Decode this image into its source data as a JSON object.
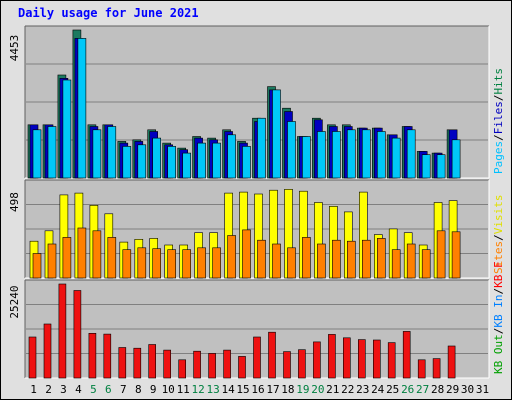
{
  "chart_data": {
    "title": "Daily usage for June 2021",
    "type": "bar",
    "x": [
      "1",
      "2",
      "3",
      "4",
      "5",
      "6",
      "7",
      "8",
      "9",
      "10",
      "11",
      "12",
      "13",
      "14",
      "15",
      "16",
      "17",
      "18",
      "19",
      "20",
      "21",
      "22",
      "23",
      "24",
      "25",
      "26",
      "27",
      "28",
      "29",
      "30",
      "31"
    ],
    "weekend_days": [
      "5",
      "6",
      "12",
      "13",
      "19",
      "20",
      "26",
      "27"
    ],
    "colors": {
      "background": "#e0e0e0",
      "plot_background": "#c0c0c0",
      "gridline": "#808080",
      "weekday_label": "#000000",
      "weekend_label": "#008040",
      "title": "#0000ff"
    },
    "panels": [
      {
        "ytick_top": "4453",
        "ymax": 4453,
        "legend": [
          {
            "text": "Hits",
            "color": "#008040"
          },
          {
            "text": "/",
            "color": "#000000"
          },
          {
            "text": "Files",
            "color": "#0000c0"
          },
          {
            "text": "/",
            "color": "#000000"
          },
          {
            "text": "Pages",
            "color": "#00c0ff"
          }
        ],
        "series": [
          {
            "name": "Hits",
            "color": "#1c7a60",
            "values": [
              1600,
              1600,
              3100,
              4453,
              1600,
              1600,
              1100,
              1150,
              1450,
              1050,
              900,
              1250,
              1200,
              1450,
              1100,
              1800,
              2750,
              2100,
              1250,
              1800,
              1600,
              1600,
              1500,
              1500,
              1300,
              1550,
              800,
              750,
              1450,
              0,
              0
            ]
          },
          {
            "name": "Files",
            "color": "#0000c0",
            "values": [
              1600,
              1600,
              3000,
              4200,
              1550,
              1600,
              1050,
              1100,
              1400,
              1000,
              850,
              1200,
              1150,
              1400,
              1050,
              1700,
              2650,
              2000,
              1250,
              1750,
              1550,
              1550,
              1500,
              1500,
              1300,
              1550,
              800,
              750,
              1450,
              0,
              0
            ]
          },
          {
            "name": "Pages",
            "color": "#00c8f8",
            "values": [
              1450,
              1550,
              2950,
              4200,
              1450,
              1550,
              950,
              1000,
              1200,
              950,
              750,
              1050,
              1050,
              1300,
              950,
              1800,
              2650,
              1700,
              1250,
              1400,
              1400,
              1450,
              1450,
              1400,
              1200,
              1450,
              700,
              700,
              1150,
              0,
              0
            ]
          }
        ]
      },
      {
        "ytick_top": "498",
        "ymax": 498,
        "legend": [
          {
            "text": "Visits",
            "color": "#e0e000"
          },
          {
            "text": "/",
            "color": "#000000"
          },
          {
            "text": "Sites",
            "color": "#ff8000"
          }
        ],
        "series": [
          {
            "name": "Visits",
            "color": "#ffff00",
            "values": [
              195,
              250,
              440,
              450,
              385,
              340,
              190,
              205,
              210,
              175,
              175,
              240,
              240,
              450,
              455,
              445,
              465,
              470,
              460,
              400,
              380,
              350,
              455,
              230,
              260,
              240,
              175,
              400,
              410,
              0,
              0
            ]
          },
          {
            "name": "Sites",
            "color": "#ff8000",
            "values": [
              130,
              180,
              215,
              265,
              250,
              215,
              150,
              160,
              155,
              150,
              150,
              160,
              160,
              225,
              255,
              200,
              180,
              160,
              215,
              180,
              200,
              195,
              200,
              210,
              150,
              180,
              150,
              250,
              245,
              0,
              0
            ]
          }
        ]
      },
      {
        "ytick_top": "25240",
        "ymax": 25240,
        "legend": [
          {
            "text": "Visits",
            "color": "#e0e000"
          },
          {
            "text": "KBytes",
            "color": "#ff0000"
          },
          {
            "text": "KB F",
            "color": "#ff0000"
          },
          {
            "text": "/",
            "color": "#000000"
          },
          {
            "text": "KB In",
            "color": "#0080ff"
          },
          {
            "text": "/",
            "color": "#000000"
          },
          {
            "text": "KB Out",
            "color": "#00a000"
          }
        ],
        "series": [
          {
            "name": "KB F",
            "color": "#ee1111",
            "values": [
              11000,
              14500,
              25240,
              23500,
              12000,
              11800,
              8200,
              8000,
              9000,
              7500,
              4900,
              7200,
              6600,
              7500,
              5800,
              11000,
              12300,
              7100,
              7600,
              9700,
              11700,
              10800,
              10300,
              10200,
              9500,
              12500,
              4900,
              5200,
              8600,
              0,
              0
            ]
          }
        ]
      }
    ]
  }
}
